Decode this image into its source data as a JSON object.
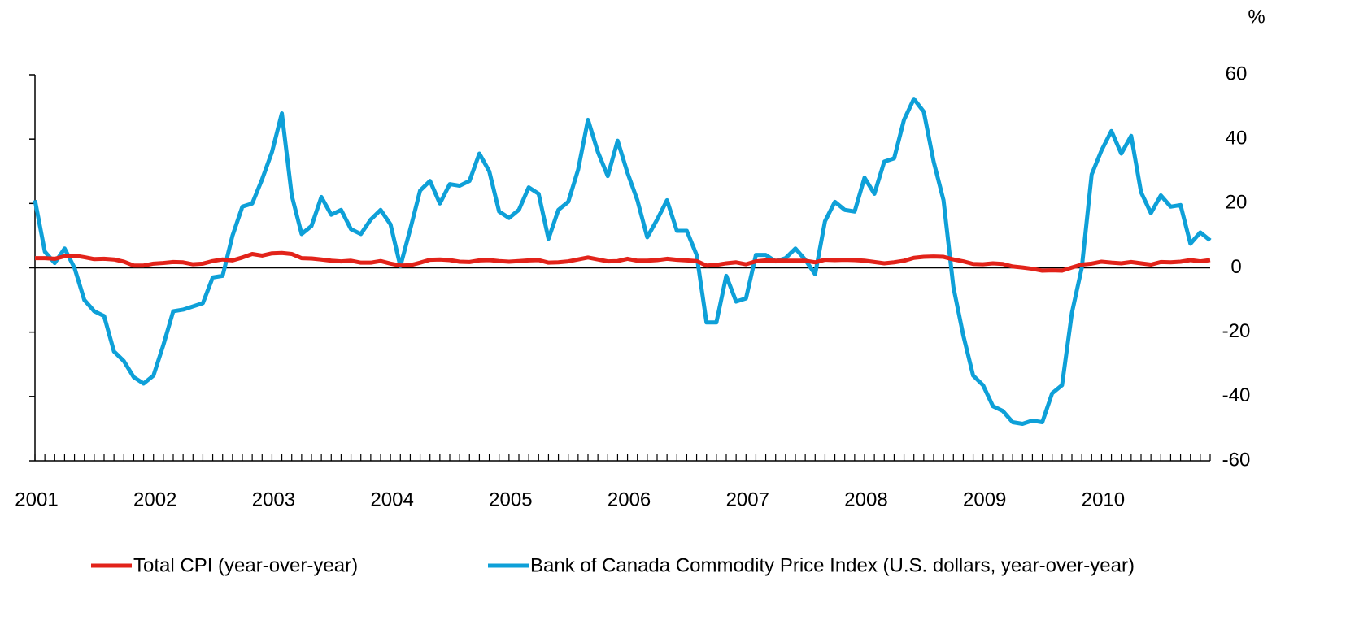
{
  "chart_data": {
    "type": "line",
    "y_label": "%",
    "categories": [
      "2001",
      null,
      null,
      null,
      null,
      null,
      null,
      null,
      null,
      null,
      null,
      null,
      "2002",
      null,
      null,
      null,
      null,
      null,
      null,
      null,
      null,
      null,
      null,
      null,
      "2003",
      null,
      null,
      null,
      null,
      null,
      null,
      null,
      null,
      null,
      null,
      null,
      "2004",
      null,
      null,
      null,
      null,
      null,
      null,
      null,
      null,
      null,
      null,
      null,
      "2005",
      null,
      null,
      null,
      null,
      null,
      null,
      null,
      null,
      null,
      null,
      null,
      "2006",
      null,
      null,
      null,
      null,
      null,
      null,
      null,
      null,
      null,
      null,
      null,
      "2007",
      null,
      null,
      null,
      null,
      null,
      null,
      null,
      null,
      null,
      null,
      null,
      "2008",
      null,
      null,
      null,
      null,
      null,
      null,
      null,
      null,
      null,
      null,
      null,
      "2009",
      null,
      null,
      null,
      null,
      null,
      null,
      null,
      null,
      null,
      null,
      null,
      "2010",
      null,
      null,
      null,
      null,
      null,
      null,
      null,
      null,
      null,
      null,
      null
    ],
    "series": [
      {
        "name": "Total CPI (year-over-year)",
        "color": "#e2231a",
        "values": [
          3,
          3,
          2.8,
          3.6,
          3.8,
          3.3,
          2.7,
          2.8,
          2.6,
          1.9,
          0.7,
          0.7,
          1.3,
          1.5,
          1.8,
          1.7,
          1.1,
          1.3,
          2.1,
          2.6,
          2.3,
          3.2,
          4.3,
          3.8,
          4.5,
          4.6,
          4.3,
          3,
          2.9,
          2.6,
          2.2,
          2,
          2.2,
          1.6,
          1.6,
          2.1,
          1.3,
          0.7,
          0.8,
          1.6,
          2.5,
          2.6,
          2.4,
          1.9,
          1.8,
          2.3,
          2.4,
          2.1,
          1.9,
          2.1,
          2.3,
          2.4,
          1.6,
          1.7,
          2,
          2.6,
          3.2,
          2.6,
          2,
          2.1,
          2.8,
          2.2,
          2.2,
          2.4,
          2.8,
          2.5,
          2.3,
          2.1,
          0.7,
          0.9,
          1.4,
          1.7,
          1.1,
          2,
          2.3,
          2.2,
          2.2,
          2.2,
          2.2,
          1.7,
          2.5,
          2.4,
          2.5,
          2.4,
          2.2,
          1.8,
          1.4,
          1.7,
          2.2,
          3.1,
          3.4,
          3.5,
          3.4,
          2.6,
          2,
          1.2,
          1.1,
          1.4,
          1.2,
          0.4,
          0.1,
          -0.3,
          -0.9,
          -0.8,
          -0.9,
          0.1,
          1,
          1.3,
          1.9,
          1.6,
          1.4,
          1.8,
          1.4,
          1,
          1.8,
          1.7,
          1.9,
          2.4,
          2,
          2.4
        ]
      },
      {
        "name": "Bank of Canada Commodity Price Index (U.S. dollars, year-over-year)",
        "color": "#0ea0d8",
        "values": [
          21,
          5,
          1.5,
          6,
          0,
          -10,
          -13.5,
          -15,
          -26,
          -29,
          -34,
          -36,
          -33.5,
          -24,
          -13.5,
          -13,
          -12,
          -11,
          -3,
          -2.5,
          10,
          19,
          20,
          27.5,
          36,
          48,
          22.5,
          10.5,
          13,
          22,
          16.5,
          18,
          12,
          10.5,
          15,
          18,
          13.5,
          0.5,
          12,
          24,
          27,
          20,
          26,
          25.5,
          27,
          35.5,
          30,
          17.5,
          15.5,
          18,
          25,
          23,
          9,
          18,
          20.5,
          30.5,
          46,
          36,
          28.5,
          39.5,
          29.5,
          21,
          9.5,
          15,
          21,
          11.5,
          11.5,
          4,
          -17,
          -17,
          -2.5,
          -10.5,
          -9.5,
          4,
          4,
          2,
          3,
          6,
          2.5,
          -2,
          14.5,
          20.5,
          18,
          17.5,
          28,
          23,
          33,
          34,
          46,
          52.5,
          48.5,
          33,
          21,
          -6,
          -21,
          -33.5,
          -36.5,
          -43,
          -44.5,
          -48,
          -48.5,
          -47.5,
          -48,
          -39,
          -36.5,
          -14,
          0,
          29,
          36.5,
          42.5,
          35.5,
          41,
          23.5,
          17,
          22.5,
          19,
          19.5,
          7.5,
          11,
          8.5
        ]
      }
    ],
    "ylim": [
      -60,
      60
    ],
    "yticks": [
      -60,
      -40,
      -20,
      0,
      20,
      40,
      60
    ],
    "legend": "bottom"
  }
}
